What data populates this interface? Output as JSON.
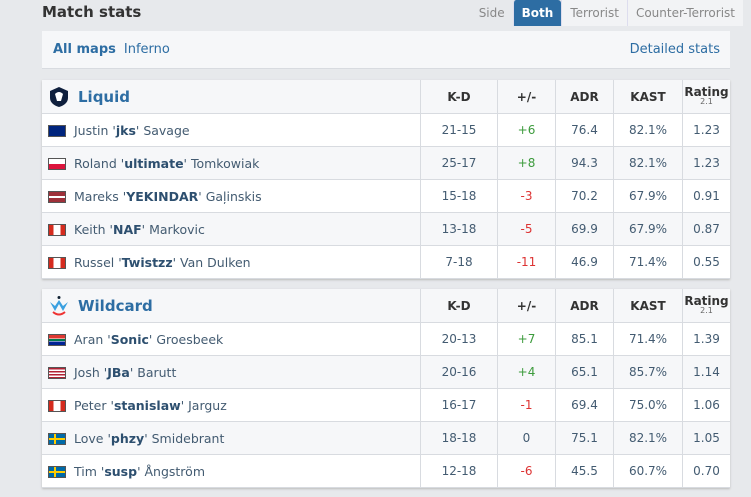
{
  "title": "Match stats",
  "side": {
    "label": "Side",
    "options": [
      "Both",
      "Terrorist",
      "Counter-Terrorist"
    ],
    "selected": "Both"
  },
  "maps": {
    "items": [
      "All maps",
      "Inferno"
    ],
    "selected": "All maps",
    "detailed": "Detailed stats"
  },
  "columns": [
    "K-D",
    "+/-",
    "ADR",
    "KAST",
    "Rating",
    "2.1"
  ],
  "teams": [
    {
      "name": "Liquid",
      "players": [
        {
          "first": "Justin",
          "nick": "jks",
          "last": "Savage",
          "flag": "australia",
          "kd": "21-15",
          "pm": "+6",
          "adr": "76.4",
          "kast": "82.1%",
          "rating": "1.23"
        },
        {
          "first": "Roland",
          "nick": "ultimate",
          "last": "Tomkowiak",
          "flag": "poland",
          "kd": "25-17",
          "pm": "+8",
          "adr": "94.3",
          "kast": "82.1%",
          "rating": "1.23"
        },
        {
          "first": "Mareks",
          "nick": "YEKINDAR",
          "last": "Gaļinskis",
          "flag": "latvia",
          "kd": "15-18",
          "pm": "-3",
          "adr": "70.2",
          "kast": "67.9%",
          "rating": "0.91"
        },
        {
          "first": "Keith",
          "nick": "NAF",
          "last": "Markovic",
          "flag": "canada",
          "kd": "13-18",
          "pm": "-5",
          "adr": "69.9",
          "kast": "67.9%",
          "rating": "0.87"
        },
        {
          "first": "Russel",
          "nick": "Twistzz",
          "last": "Van Dulken",
          "flag": "canada",
          "kd": "7-18",
          "pm": "-11",
          "adr": "46.9",
          "kast": "71.4%",
          "rating": "0.55"
        }
      ]
    },
    {
      "name": "Wildcard",
      "players": [
        {
          "first": "Aran",
          "nick": "Sonic",
          "last": "Groesbeek",
          "flag": "south-africa",
          "kd": "20-13",
          "pm": "+7",
          "adr": "85.1",
          "kast": "71.4%",
          "rating": "1.39"
        },
        {
          "first": "Josh",
          "nick": "JBa",
          "last": "Barutt",
          "flag": "usa",
          "kd": "20-16",
          "pm": "+4",
          "adr": "65.1",
          "kast": "85.7%",
          "rating": "1.14"
        },
        {
          "first": "Peter",
          "nick": "stanislaw",
          "last": "Jarguz",
          "flag": "canada",
          "kd": "16-17",
          "pm": "-1",
          "adr": "69.4",
          "kast": "75.0%",
          "rating": "1.06"
        },
        {
          "first": "Love",
          "nick": "phzy",
          "last": "Smidebrant",
          "flag": "sweden",
          "kd": "18-18",
          "pm": "0",
          "adr": "75.1",
          "kast": "82.1%",
          "rating": "1.05"
        },
        {
          "first": "Tim",
          "nick": "susp",
          "last": "Ångström",
          "flag": "sweden",
          "kd": "12-18",
          "pm": "-6",
          "adr": "45.5",
          "kast": "60.7%",
          "rating": "0.70"
        }
      ]
    }
  ]
}
